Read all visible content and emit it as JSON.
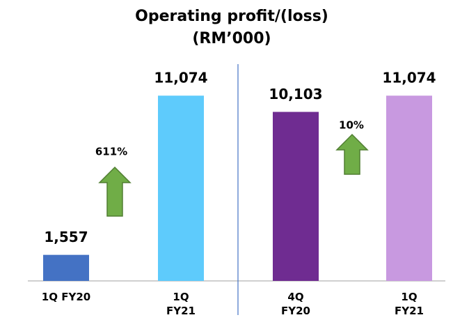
{
  "chart_data": {
    "type": "bar",
    "title": "Operating profit/(loss)",
    "subtitle": "(RM’000)",
    "categories": [
      "1Q FY20",
      "1Q FY21",
      "4Q FY20",
      "1Q FY21"
    ],
    "values": [
      1557,
      11074,
      10103,
      11074
    ],
    "value_labels": [
      "1,557",
      "11,074",
      "10,103",
      "11,074"
    ],
    "colors": [
      "#4472c4",
      "#5ecbfc",
      "#6f2c91",
      "#c899e0"
    ],
    "ylim": [
      0,
      12000
    ],
    "annotations": [
      "611%",
      "10%"
    ]
  }
}
